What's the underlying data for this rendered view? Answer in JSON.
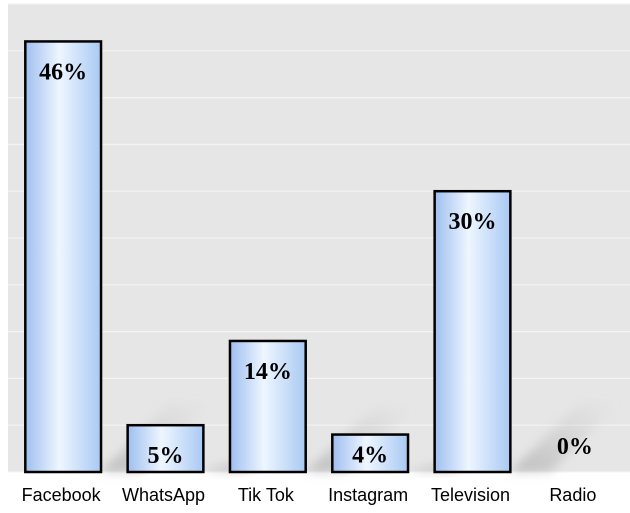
{
  "chart_data": {
    "type": "bar",
    "title": "",
    "xlabel": "",
    "ylabel": "",
    "categories": [
      "Facebook",
      "WhatsApp",
      "Tik Tok",
      "Instagram",
      "Television",
      "Radio"
    ],
    "values": [
      46,
      5,
      14,
      4,
      30,
      0
    ],
    "value_labels": [
      "46%",
      "5%",
      "14%",
      "4%",
      "30%",
      "0%"
    ],
    "ylim": [
      0,
      50
    ],
    "grid": true,
    "legend": "none",
    "colors": {
      "plot_background": "#e6e6e6",
      "gridline": "#f4f4f4",
      "bar_fill_light": "#eaf3ff",
      "bar_fill_dark": "#a9c9f3",
      "bar_edge": "#000000"
    }
  }
}
